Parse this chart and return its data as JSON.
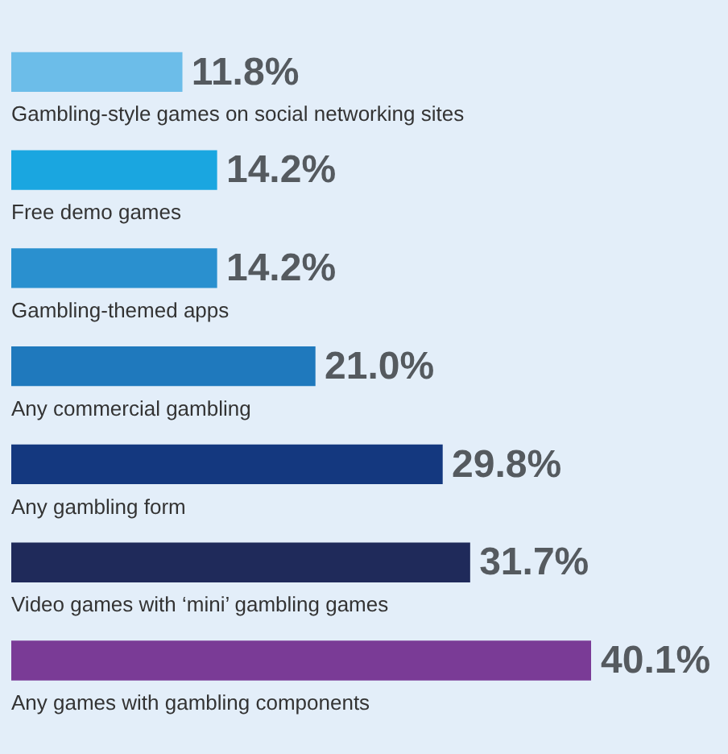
{
  "chart_data": {
    "type": "bar",
    "orientation": "horizontal",
    "categories": [
      "Gambling-style games on social networking sites",
      "Free demo games",
      "Gambling-themed apps",
      "Any commercial gambling",
      "Any gambling form",
      "Video games with ‘mini’ gambling games",
      "Any games with gambling components"
    ],
    "values": [
      11.8,
      14.2,
      14.2,
      21.0,
      29.8,
      31.7,
      40.1
    ],
    "colors": [
      "#6cbde9",
      "#1aa6e0",
      "#2a90cf",
      "#1f79bd",
      "#14387f",
      "#1f2a5a",
      "#7a3b96"
    ],
    "value_labels": [
      "11.8%",
      "14.2%",
      "14.2%",
      "21.0%",
      "29.8%",
      "31.7%",
      "40.1%"
    ]
  }
}
